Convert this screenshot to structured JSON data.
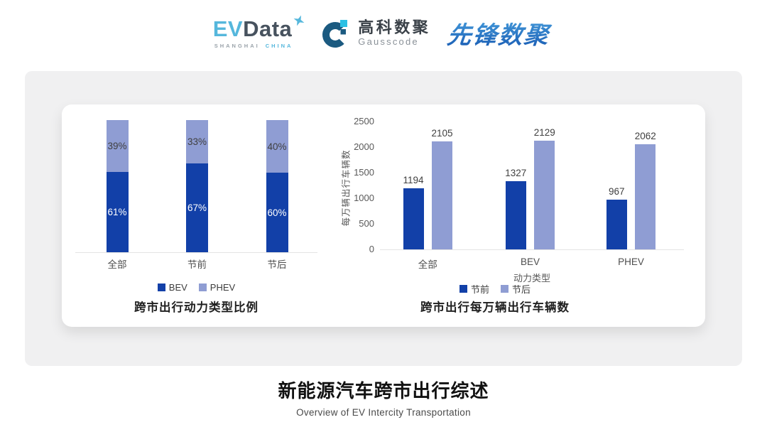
{
  "header": {
    "evdata": {
      "ev": "EV",
      "data": "Data",
      "sub1": "SHANGHAI",
      "sub2": "CHINA"
    },
    "gausscode": {
      "cn": "高科数聚",
      "en": "Gausscode"
    },
    "xianfeng": {
      "text": "先锋数聚"
    }
  },
  "colors": {
    "bar_primary": "#1240A8",
    "bar_secondary": "#8F9DD3",
    "brand_lightblue": "#55B7DC",
    "brand_slate": "#47525E",
    "brand_gray": "#9AA3AA",
    "gauss_navy": "#1B5A80",
    "gauss_cyan": "#2BC0E4",
    "gauss_text": "#3A4148",
    "gauss_sub": "#8A9198",
    "xianfeng_blue": "#2678C5",
    "axis": "#E3E3E3"
  },
  "chart_data": [
    {
      "type": "bar",
      "variant": "stacked-percent",
      "title": "跨市出行动力类型比例",
      "categories": [
        "全部",
        "节前",
        "节后"
      ],
      "series": [
        {
          "name": "BEV",
          "values": [
            61,
            67,
            60
          ],
          "color": "#1240A8",
          "label_color": "#FFFFFF"
        },
        {
          "name": "PHEV",
          "values": [
            39,
            33,
            40
          ],
          "color": "#8F9DD3",
          "label_color": "#3F3F3F"
        }
      ],
      "value_suffix": "%",
      "ylim": [
        0,
        100
      ],
      "legend": [
        "BEV",
        "PHEV"
      ],
      "legend_position": "bottom",
      "grid": false
    },
    {
      "type": "bar",
      "variant": "grouped",
      "title": "跨市出行每万辆出行车辆数",
      "categories": [
        "全部",
        "BEV",
        "PHEV"
      ],
      "series": [
        {
          "name": "节前",
          "values": [
            1194,
            1327,
            967
          ],
          "color": "#1240A8"
        },
        {
          "name": "节后",
          "values": [
            2105,
            2129,
            2062
          ],
          "color": "#8F9DD3"
        }
      ],
      "xlabel": "动力类型",
      "ylabel": "每万辆出行车辆数",
      "yticks": [
        0,
        500,
        1000,
        1500,
        2000,
        2500
      ],
      "ylim": [
        0,
        2500
      ],
      "legend": [
        "节前",
        "节后"
      ],
      "legend_position": "bottom",
      "grid": false
    }
  ],
  "footer": {
    "title": "新能源汽车跨市出行综述",
    "subtitle": "Overview of EV Intercity Transportation"
  }
}
